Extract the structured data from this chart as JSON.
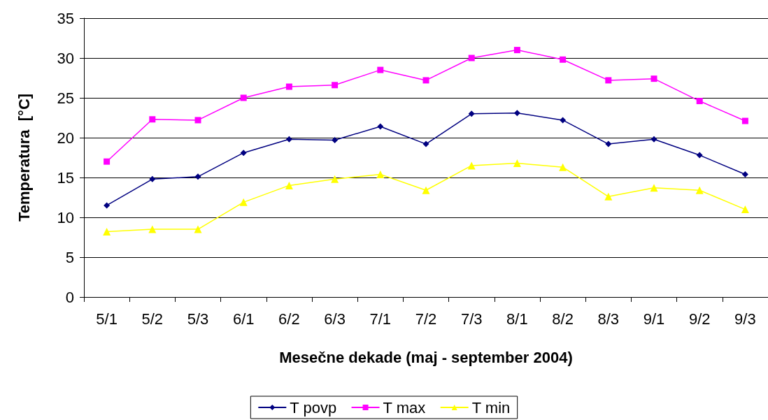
{
  "chart_data": {
    "type": "line",
    "xlabel": "Mesečne dekade (maj - september 2004)",
    "ylabel": "Temperatura  [°C]",
    "categories": [
      "5/1",
      "5/2",
      "5/3",
      "6/1",
      "6/2",
      "6/3",
      "7/1",
      "7/2",
      "7/3",
      "8/1",
      "8/2",
      "8/3",
      "9/1",
      "9/2",
      "9/3"
    ],
    "series": [
      {
        "name": "T povp",
        "color": "#000080",
        "marker": "diamond",
        "values": [
          11.5,
          14.8,
          15.1,
          18.1,
          19.8,
          19.7,
          21.4,
          19.2,
          23.0,
          23.1,
          22.2,
          19.2,
          19.8,
          17.8,
          15.4
        ]
      },
      {
        "name": "T max",
        "color": "#ff00ff",
        "marker": "square",
        "values": [
          17.0,
          22.3,
          22.2,
          25.0,
          26.4,
          26.6,
          28.5,
          27.2,
          30.0,
          31.0,
          29.8,
          27.2,
          27.4,
          24.6,
          22.1
        ]
      },
      {
        "name": "T min",
        "color": "#ffff00",
        "marker": "triangle",
        "values": [
          8.2,
          8.5,
          8.5,
          11.9,
          14.0,
          14.8,
          15.4,
          13.4,
          16.5,
          16.8,
          16.3,
          12.6,
          13.7,
          13.4,
          11.0
        ]
      }
    ],
    "ylim": [
      0,
      35
    ],
    "yticks": [
      0,
      5,
      10,
      15,
      20,
      25,
      30,
      35
    ],
    "grid": "y",
    "legend": "bottom"
  }
}
